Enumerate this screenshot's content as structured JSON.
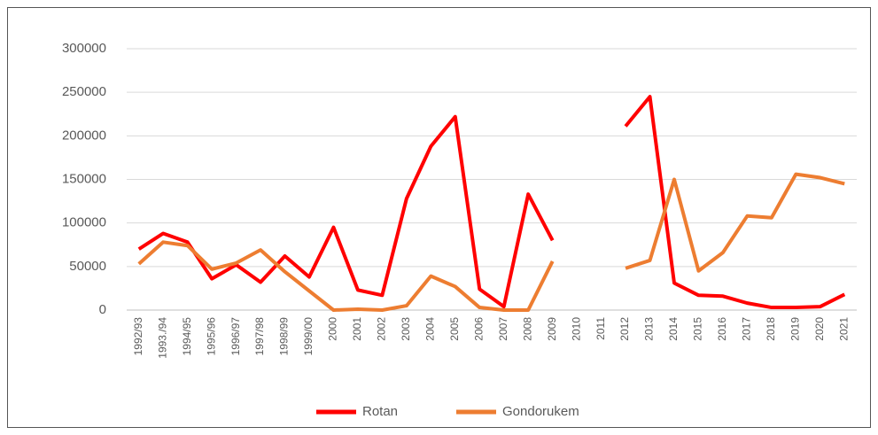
{
  "chart_data": {
    "type": "line",
    "categories": [
      "1992/93",
      "1993./94",
      "1994/95",
      "1995/96",
      "1996/97",
      "1997/98",
      "1998/99",
      "1999/00",
      "2000",
      "2001",
      "2002",
      "2003",
      "2004",
      "2005",
      "2006",
      "2007",
      "2008",
      "2009",
      "2010",
      "2011",
      "2012",
      "2013",
      "2014",
      "2015",
      "2016",
      "2017",
      "2018",
      "2019",
      "2020",
      "2021"
    ],
    "series": [
      {
        "name": "Rotan",
        "color": "#ff0000",
        "values": [
          70000,
          88000,
          78000,
          36000,
          52000,
          32000,
          62000,
          38000,
          95000,
          23000,
          17000,
          128000,
          188000,
          222000,
          24000,
          4000,
          133000,
          80000,
          null,
          null,
          211000,
          245000,
          31000,
          17000,
          16000,
          8000,
          3000,
          3000,
          4000,
          18000
        ]
      },
      {
        "name": "Gondorukem",
        "color": "#ed7d31",
        "values": [
          53000,
          78000,
          74000,
          47000,
          54000,
          69000,
          44000,
          22000,
          0,
          1000,
          0,
          5000,
          39000,
          27000,
          3000,
          0,
          0,
          56000,
          null,
          null,
          48000,
          57000,
          150000,
          45000,
          66000,
          108000,
          106000,
          156000,
          152000,
          145000
        ]
      }
    ],
    "ylim": [
      0,
      300000
    ],
    "yticks": [
      0,
      50000,
      100000,
      150000,
      200000,
      250000,
      300000
    ],
    "grid": true,
    "legend": "bottom"
  }
}
